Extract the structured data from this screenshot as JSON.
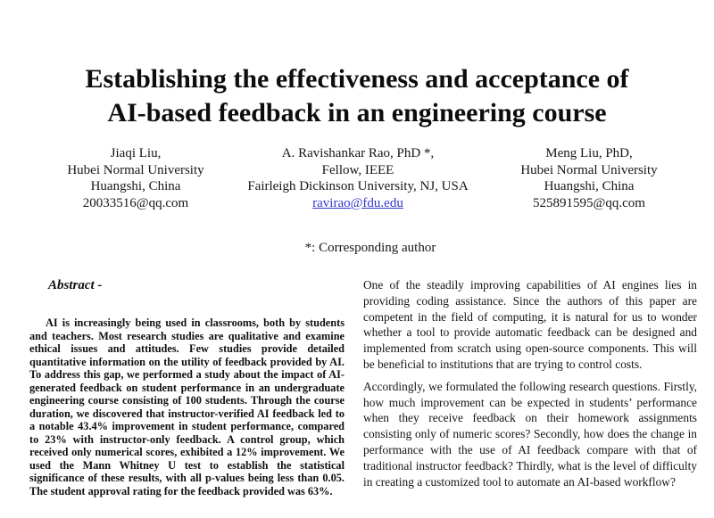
{
  "title": {
    "line1": "Establishing the effectiveness and acceptance of",
    "line2": "AI-based feedback in an engineering course"
  },
  "authors": [
    {
      "name": "Jiaqi Liu,",
      "affiliation": "Hubei Normal University",
      "location": "Huangshi, China",
      "email": "20033516@qq.com"
    },
    {
      "name": "A. Ravishankar Rao, PhD *,",
      "affiliation": "Fellow, IEEE",
      "location": "Fairleigh Dickinson University, NJ, USA",
      "email": "ravirao@fdu.edu"
    },
    {
      "name": "Meng Liu, PhD,",
      "affiliation": "Hubei Normal University",
      "location": "Huangshi, China",
      "email": "525891595@qq.com"
    }
  ],
  "note": "*: Corresponding author",
  "abstract": {
    "heading": "Abstract -",
    "body": "AI is increasingly being used in classrooms, both by students and teachers. Most research studies are qualitative and examine ethical issues and attitudes. Few studies provide detailed quantitative information on the utility of feedback provided by AI. To address this gap, we performed a study about the impact of AI-generated feedback on student performance in an undergraduate engineering course consisting of 100 students. Through the course duration, we discovered that instructor-verified AI feedback led to a notable 43.4% improvement in student performance, compared to 23% with instructor-only feedback. A control group, which received only numerical scores, exhibited a 12% improvement. We used the Mann Whitney U test to establish the statistical significance of these results, with all p-values being less than 0.05. The student approval rating for the feedback provided was 63%."
  },
  "body_right": {
    "paragraph1": "One of the steadily improving capabilities of AI engines lies in providing coding assistance. Since the authors of this paper are competent in the field of computing, it is natural for us to wonder whether a tool to provide automatic feedback can be designed and implemented from scratch using open-source components. This will be beneficial to institutions that are trying to control costs.",
    "paragraph2": "Accordingly, we formulated the following research questions. Firstly, how much improvement can be expected in students’ performance when they receive feedback on their homework assignments consisting only of numeric scores? Secondly, how does the change in performance with the use of AI feedback compare with that of traditional instructor feedback? Thirdly, what is the level of difficulty in creating a customized tool to automate an AI-based workflow?"
  },
  "colors": {
    "text": "#121212",
    "background": "#ffffff",
    "link": "#3535cc"
  }
}
